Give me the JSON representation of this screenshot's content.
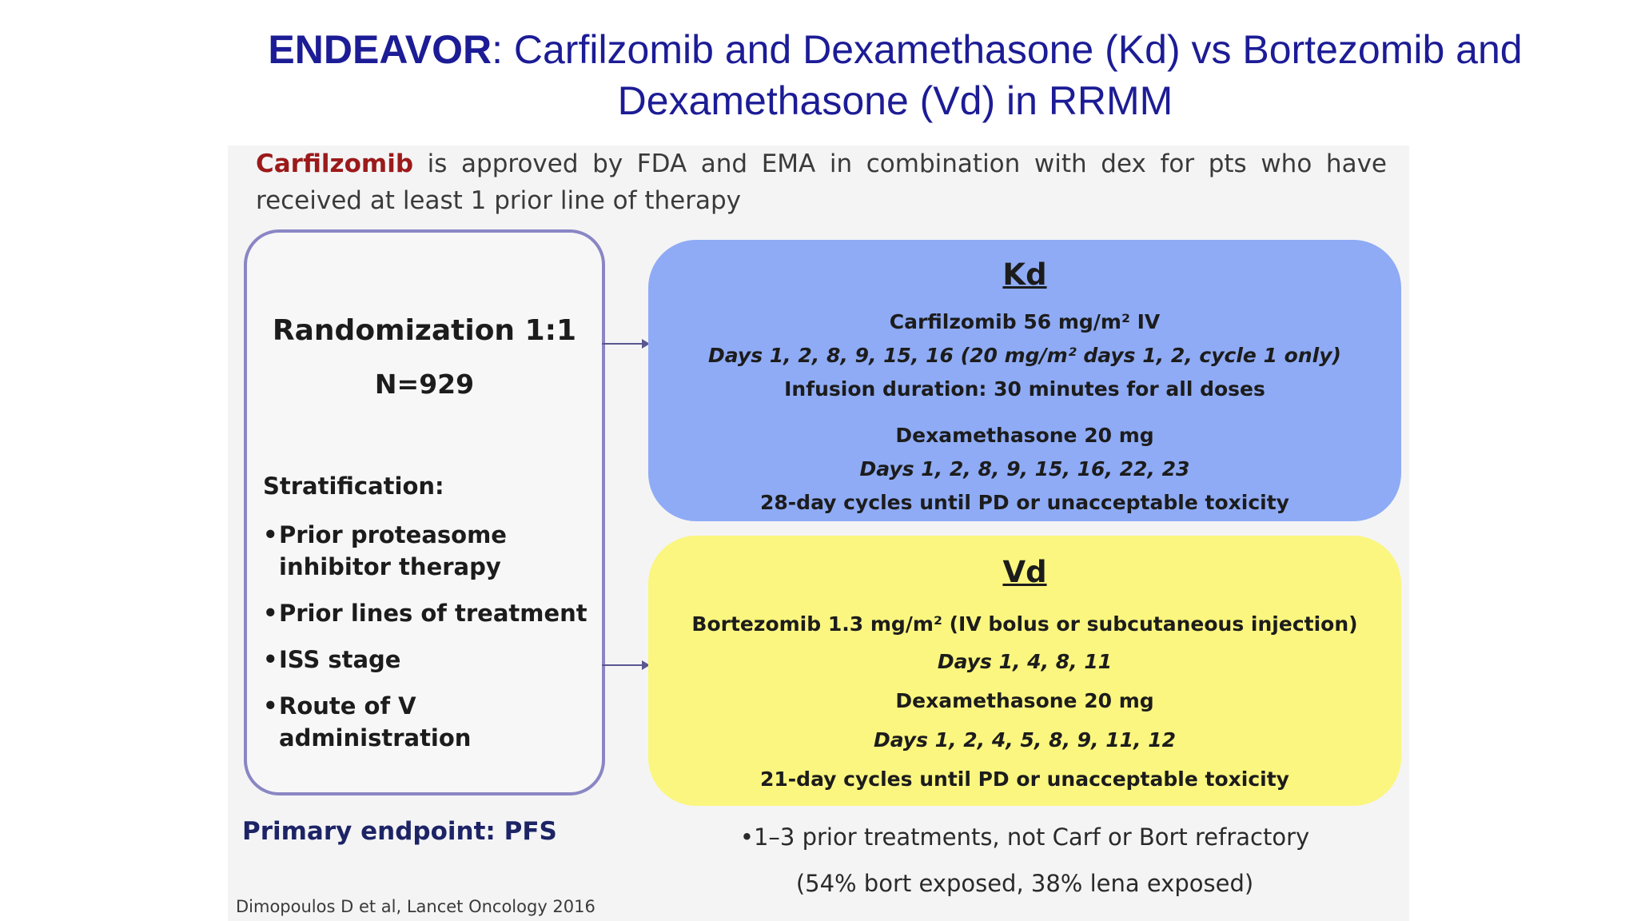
{
  "title": {
    "bold": "ENDEAVOR",
    "rest": ": Carfilzomib and Dexamethasone (Kd) vs Bortezomib and Dexamethasone (Vd) in RRMM"
  },
  "intro": {
    "drug": "Carfilzomib",
    "text": " is approved by FDA and EMA in combination with dex for pts who have received at least 1 prior line of therapy"
  },
  "randomization": {
    "title": "Randomization 1:1",
    "n": "N=929",
    "stratification_label": "Stratification:",
    "stratification": [
      "Prior proteasome inhibitor therapy",
      "Prior lines of treatment",
      "ISS stage",
      "Route of V administration"
    ]
  },
  "arms": {
    "kd": {
      "heading": "Kd",
      "lines": [
        "Carfilzomib 56 mg/m² IV",
        "Days 1, 2, 8, 9, 15, 16 (20 mg/m² days 1, 2, cycle 1 only)",
        "Infusion duration: 30 minutes for all doses",
        "Dexamethasone 20 mg",
        "Days 1, 2, 8, 9, 15, 16, 22, 23",
        "28-day cycles until PD or unacceptable toxicity"
      ]
    },
    "vd": {
      "heading": "Vd",
      "lines": [
        "Bortezomib 1.3 mg/m² (IV bolus or subcutaneous injection)",
        "Days 1, 4, 8, 11",
        "Dexamethasone 20 mg",
        "Days 1, 2, 4, 5, 8, 9, 11, 12",
        "21-day cycles until PD or unacceptable toxicity"
      ]
    }
  },
  "primary_endpoint": "Primary endpoint: PFS",
  "notes": [
    "•1–3 prior treatments, not Carf or Bort refractory",
    "(54% bort exposed, 38% lena exposed)"
  ],
  "citation": "Dimopoulos D et al, Lancet Oncology 2016",
  "colors": {
    "title": "#1c1c96",
    "kd_box": "#8fabf5",
    "vd_box": "#fbf67f",
    "drug_highlight": "#9c1a1a",
    "box_border": "#8a86c4"
  }
}
